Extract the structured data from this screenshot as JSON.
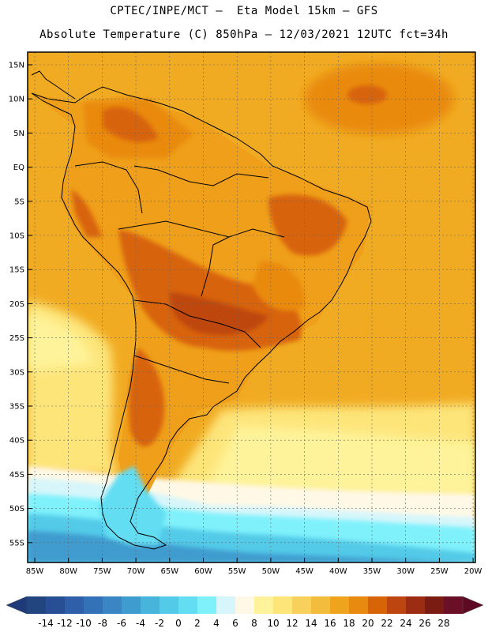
{
  "title_line1": "CPTEC/INPE/MCT –  Eta Model 15km – GFS",
  "title_line2": "Absolute Temperature (C) 850hPa – 12/03/2021 12UTC fct=34h",
  "lat_labels": [
    "15N",
    "10N",
    "5N",
    "EQ",
    "5S",
    "10S",
    "15S",
    "20S",
    "25S",
    "30S",
    "35S",
    "40S",
    "45S",
    "50S",
    "55S"
  ],
  "lon_labels": [
    "85W",
    "80W",
    "75W",
    "70W",
    "65W",
    "60W",
    "55W",
    "50W",
    "45W",
    "40W",
    "35W",
    "30W",
    "25W",
    "20W"
  ],
  "colorbar": {
    "labels": [
      "-14",
      "-12",
      "-10",
      "-8",
      "-6",
      "-4",
      "-2",
      "0",
      "2",
      "4",
      "6",
      "8",
      "10",
      "12",
      "14",
      "16",
      "18",
      "20",
      "22",
      "24",
      "26",
      "28"
    ],
    "colors": [
      "#22447f",
      "#284e94",
      "#2e5fa8",
      "#3472b8",
      "#3a86c4",
      "#3f9ccf",
      "#47b4dc",
      "#52cae8",
      "#62ddf2",
      "#7ff1fb",
      "#d6f6fb",
      "#fff8e6",
      "#fef39a",
      "#fde57a",
      "#f8d15c",
      "#f2bc3c",
      "#f0a31c",
      "#e98a10",
      "#d86408",
      "#bd4610",
      "#9c2c12",
      "#7a1c12",
      "#6a0f26"
    ],
    "under_color": "#1f3a78",
    "over_color": "#5e0a24"
  },
  "colors": {
    "ocean_base": "#f1ab22",
    "land_base": "#ef9f1a",
    "hot": "#d86408",
    "very_hot": "#bd4610",
    "cool_pale": "#fef39a",
    "cold_light": "#7ff1fb",
    "cold": "#3f9ccf",
    "grid": "#666666",
    "coast": "#000000"
  }
}
